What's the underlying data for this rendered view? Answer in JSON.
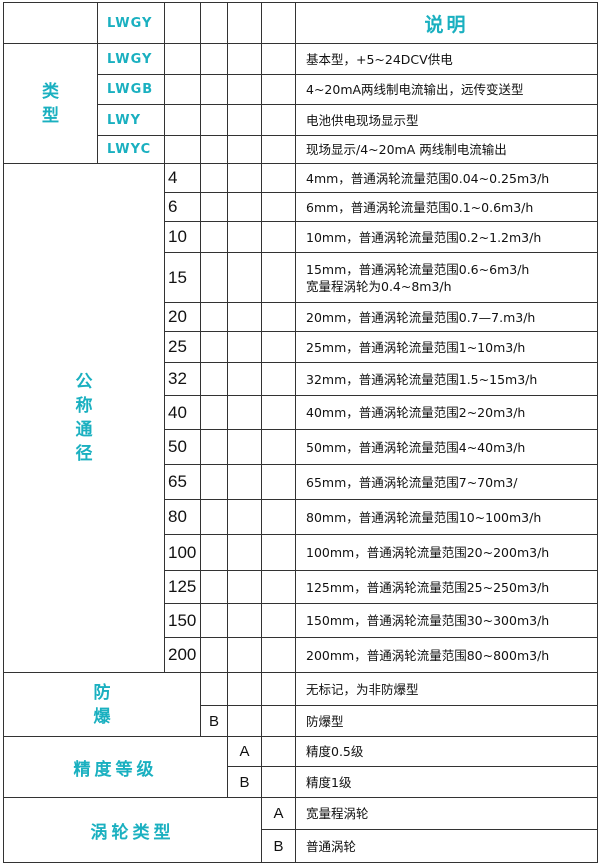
{
  "header": {
    "code": "LWGY",
    "description_title": "说明"
  },
  "type": {
    "label": "类型",
    "rows": [
      {
        "code": "LWGY",
        "desc": "基本型，+5~24DCV供电"
      },
      {
        "code": "LWGB",
        "desc": "4~20mA两线制电流输出，远传变送型"
      },
      {
        "code": "LWY",
        "desc": "电池供电现场显示型"
      },
      {
        "code": "LWYC",
        "desc": "现场显示/4~20mA 两线制电流输出"
      }
    ]
  },
  "diameter": {
    "label": "公称通径",
    "rows": [
      {
        "code": "4",
        "desc": "4mm，普通涡轮流量范围0.04~0.25m3/h"
      },
      {
        "code": "6",
        "desc": "6mm，普通涡轮流量范围0.1~0.6m3/h"
      },
      {
        "code": "10",
        "desc": "10mm，普通涡轮流量范围0.2~1.2m3/h"
      },
      {
        "code": "15",
        "desc": "15mm，普通涡轮流量范围0.6~6m3/h",
        "desc2": "宽量程涡轮为0.4~8m3/h"
      },
      {
        "code": "20",
        "desc": "20mm，普通涡轮流量范围0.7—7.m3/h"
      },
      {
        "code": "25",
        "desc": "25mm，普通涡轮流量范围1~10m3/h"
      },
      {
        "code": "32",
        "desc": "32mm，普通涡轮流量范围1.5~15m3/h"
      },
      {
        "code": "40",
        "desc": "40mm，普通涡轮流量范围2~20m3/h"
      },
      {
        "code": "50",
        "desc": "50mm，普通涡轮流量范围4~40m3/h"
      },
      {
        "code": "65",
        "desc": "65mm，普通涡轮流量范围7~70m3/"
      },
      {
        "code": "80",
        "desc": "80mm，普通涡轮流量范围10~100m3/h"
      },
      {
        "code": "100",
        "desc": "100mm，普通涡轮流量范围20~200m3/h"
      },
      {
        "code": "125",
        "desc": "125mm，普通涡轮流量范围25~250m3/h"
      },
      {
        "code": "150",
        "desc": "150mm，普通涡轮流量范围30~300m3/h"
      },
      {
        "code": "200",
        "desc": "200mm，普通涡轮流量范围80~800m3/h"
      }
    ]
  },
  "explosion": {
    "label": "防爆",
    "rows": [
      {
        "code": "",
        "desc": "无标记，为非防爆型"
      },
      {
        "code": "B",
        "desc": "防爆型"
      }
    ]
  },
  "accuracy": {
    "label": "精度等级",
    "rows": [
      {
        "code": "A",
        "desc": "精度0.5级"
      },
      {
        "code": "B",
        "desc": "精度1级"
      }
    ]
  },
  "turbine": {
    "label": "涡轮类型",
    "rows": [
      {
        "code": "A",
        "desc": "宽量程涡轮"
      },
      {
        "code": "B",
        "desc": "普通涡轮"
      }
    ]
  },
  "colors": {
    "label": "#1ab0c0",
    "border": "#333333",
    "text": "#111111"
  }
}
